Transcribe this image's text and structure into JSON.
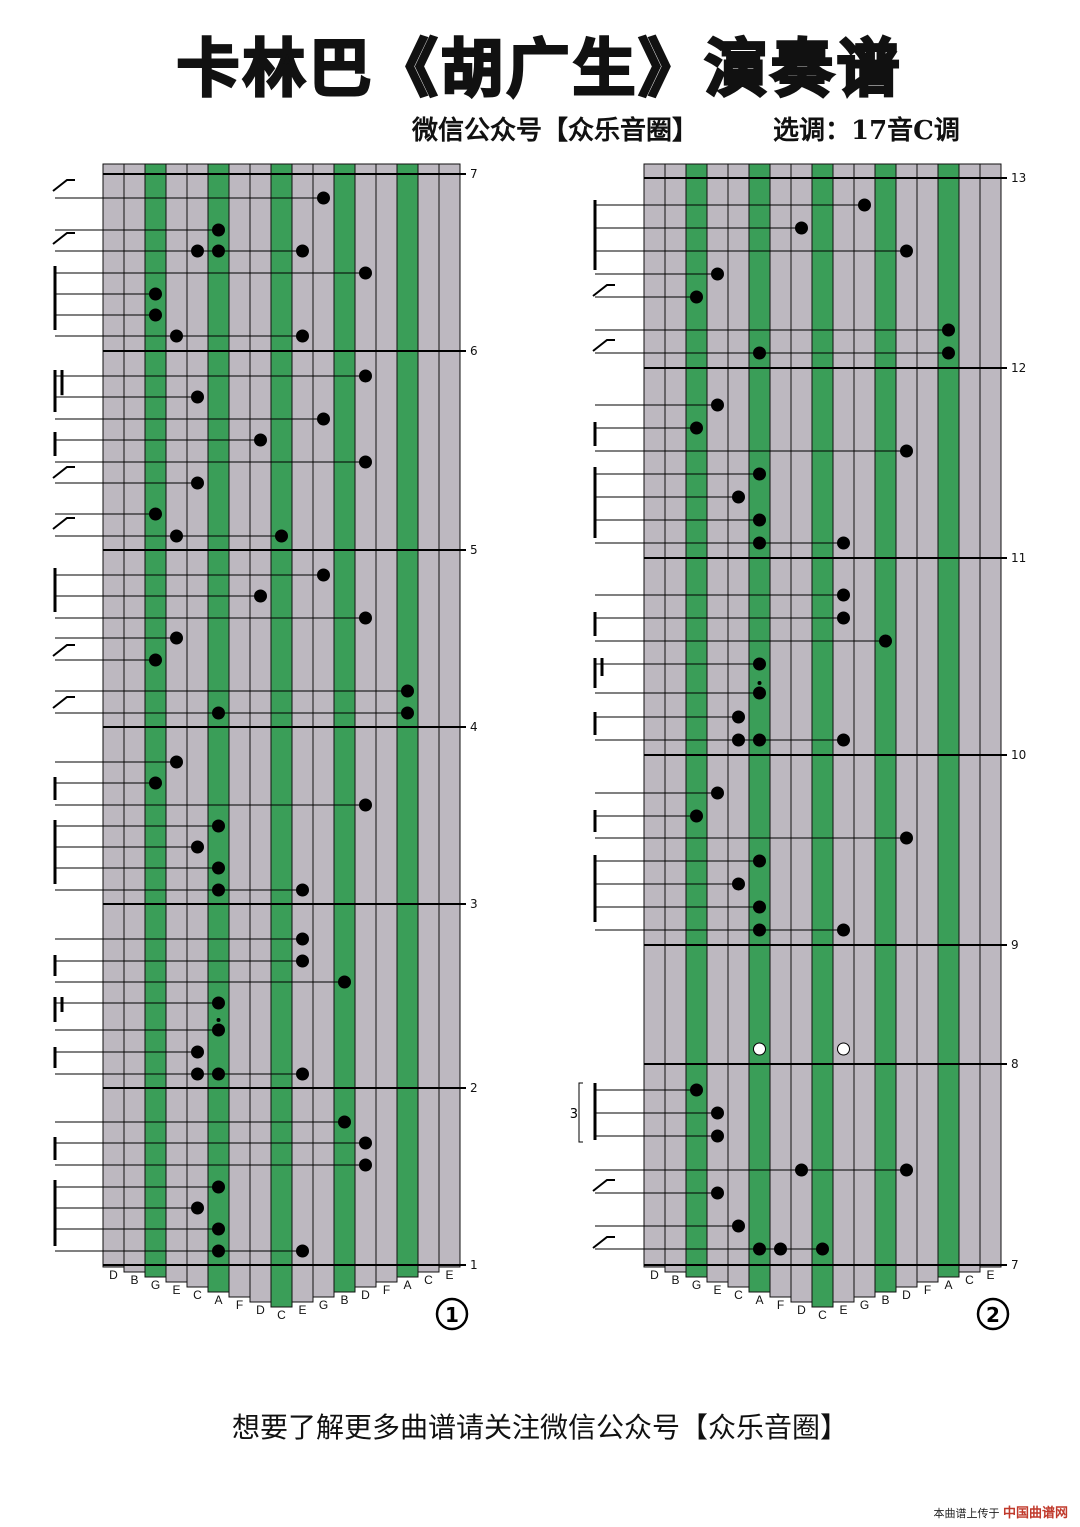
{
  "title": "卡林巴《胡广生》演奏谱",
  "subtitle": "微信公众号【众乐音圈】",
  "key_info": "选调：17音C调",
  "footer": "想要了解更多曲谱请关注微信公众号【众乐音圈】",
  "watermark": {
    "prefix": "本曲谱上传于",
    "site": "中国曲谱网"
  },
  "colors": {
    "tine_gray": "#bdb8c0",
    "tine_green": "#3a9e58",
    "ink": "#000000"
  },
  "tine_labels": [
    "D",
    "B",
    "G",
    "E",
    "C",
    "A",
    "F",
    "D",
    "C",
    "E",
    "G",
    "B",
    "D",
    "F",
    "A",
    "C",
    "E"
  ],
  "green_tines": [
    2,
    5,
    8,
    11,
    14
  ],
  "systems": [
    {
      "page_number": "①",
      "measure_labels": [
        "7",
        "6",
        "5",
        "4",
        "3",
        "2",
        "1"
      ],
      "rows": [
        [
          10
        ],
        [
          5
        ],
        [
          4,
          5,
          9
        ],
        [
          12
        ],
        [
          2
        ],
        [
          2
        ],
        [
          3,
          9
        ],
        [
          12
        ],
        [
          4
        ],
        [
          10
        ],
        [
          7
        ],
        [
          12
        ],
        [
          4
        ],
        [
          2
        ],
        [
          3,
          8
        ],
        [
          10
        ],
        [
          7
        ],
        [
          12
        ],
        [
          3
        ],
        [
          2
        ],
        [
          14
        ],
        [
          5,
          14
        ],
        [
          3
        ],
        [
          2
        ],
        [
          12
        ],
        [
          5
        ],
        [
          4
        ],
        [
          5
        ],
        [
          5,
          9
        ],
        [
          9
        ],
        [
          9
        ],
        [
          11
        ],
        [
          5
        ],
        [
          5
        ],
        [
          4
        ],
        [
          4,
          5,
          9
        ],
        [
          11
        ],
        [
          12
        ],
        [
          12
        ],
        [
          5
        ],
        [
          4
        ],
        [
          5
        ],
        [
          5,
          9
        ]
      ],
      "dotted_rows": [
        33
      ]
    },
    {
      "page_number": "②",
      "measure_labels": [
        "13",
        "12",
        "11",
        "10",
        "9",
        "8",
        "7"
      ],
      "rows": [
        [
          10
        ],
        [
          7
        ],
        [
          12
        ],
        [
          3
        ],
        [
          2
        ],
        [
          14
        ],
        [
          5,
          14
        ],
        [
          3
        ],
        [
          2
        ],
        [
          12
        ],
        [
          5
        ],
        [
          4
        ],
        [
          5
        ],
        [
          5,
          9
        ],
        [
          9
        ],
        [
          9
        ],
        [
          11
        ],
        [
          5
        ],
        [
          5
        ],
        [
          4
        ],
        [
          4,
          5,
          9
        ],
        [
          3
        ],
        [
          2
        ],
        [
          12
        ],
        [
          5
        ],
        [
          4
        ],
        [
          5
        ],
        [
          5,
          9
        ],
        [
          5,
          9
        ],
        [
          2
        ],
        [
          3
        ],
        [
          3
        ],
        [
          7,
          12
        ],
        [
          3
        ],
        [
          4
        ],
        [
          5,
          6,
          8
        ]
      ],
      "dotted_rows": [
        18
      ],
      "open_rows": [
        28
      ],
      "triplet_label": "3"
    }
  ]
}
